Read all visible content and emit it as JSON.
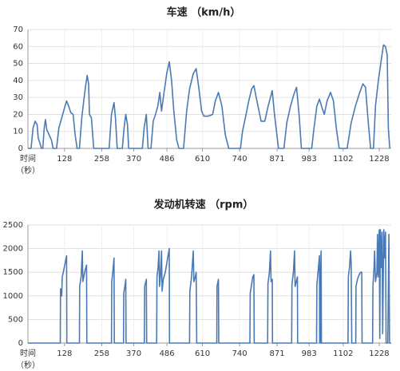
{
  "chart_data": [
    {
      "type": "line",
      "title": "车速 （km/h）",
      "x_label": [
        "时间",
        "（秒）"
      ],
      "x": [
        0,
        11,
        18,
        25,
        32,
        36,
        44,
        47,
        52,
        57,
        61,
        66,
        74,
        82,
        88,
        100,
        108,
        118,
        128,
        135,
        142,
        150,
        158,
        165,
        172,
        180,
        188,
        195,
        201,
        207,
        212,
        215,
        222,
        230,
        284,
        292,
        301,
        306,
        312,
        330,
        336,
        342,
        348,
        352,
        400,
        406,
        414,
        420,
        430,
        438,
        446,
        454,
        461,
        467,
        475,
        485,
        494,
        502,
        510,
        520,
        528,
        544,
        555,
        565,
        578,
        588,
        598,
        607,
        615,
        630,
        646,
        655,
        666,
        678,
        690,
        702,
        743,
        750,
        760,
        772,
        782,
        790,
        798,
        815,
        828,
        840,
        854,
        862,
        876,
        895,
        905,
        918,
        930,
        939,
        948,
        956,
        992,
        1000,
        1010,
        1019,
        1028,
        1036,
        1046,
        1058,
        1068,
        1078,
        1088,
        1116,
        1130,
        1145,
        1160,
        1171,
        1180,
        1190,
        1198,
        1208,
        1215,
        1225,
        1235,
        1243,
        1250,
        1256,
        1260,
        1265
      ],
      "series": [
        {
          "color": "#4a7ab5",
          "values": [
            0,
            0,
            12,
            16,
            14,
            6,
            2,
            0,
            0,
            12,
            17,
            11,
            8,
            5,
            0,
            0,
            12,
            18,
            24,
            28,
            25,
            21,
            20,
            8,
            0,
            0,
            18,
            28,
            36,
            43,
            38,
            20,
            18,
            0,
            0,
            20,
            27,
            18,
            0,
            0,
            12,
            20,
            14,
            0,
            0,
            12,
            20,
            0,
            0,
            16,
            20,
            25,
            33,
            22,
            32,
            44,
            51,
            40,
            22,
            5,
            0,
            0,
            22,
            35,
            44,
            47,
            35,
            22,
            19,
            19,
            20,
            28,
            33,
            25,
            8,
            0,
            0,
            10,
            18,
            28,
            35,
            37,
            30,
            16,
            16,
            25,
            34,
            20,
            0,
            0,
            15,
            25,
            32,
            36,
            20,
            0,
            0,
            12,
            25,
            29,
            24,
            20,
            28,
            33,
            28,
            12,
            0,
            0,
            15,
            25,
            33,
            38,
            36,
            15,
            0,
            0,
            25,
            40,
            52,
            61,
            60,
            55,
            12,
            0
          ]
        }
      ],
      "xlim": [
        0,
        1270
      ],
      "xticks": [
        128,
        258,
        370,
        486,
        610,
        740,
        871,
        983,
        1102,
        1228
      ],
      "ylim": [
        0,
        70
      ],
      "yticks": [
        0,
        10,
        20,
        30,
        40,
        50,
        60,
        70
      ],
      "grid": true
    },
    {
      "type": "line",
      "title": "发动机转速 （rpm）",
      "x_label": [
        "时间",
        "（秒）"
      ],
      "x": [
        0,
        113,
        114,
        118,
        120,
        127,
        135,
        136,
        180,
        181,
        186,
        190,
        192,
        195,
        200,
        205,
        206,
        292,
        293,
        298,
        301,
        302,
        334,
        335,
        340,
        342,
        343,
        407,
        408,
        412,
        414,
        415,
        450,
        451,
        455,
        458,
        460,
        463,
        467,
        469,
        473,
        480,
        487,
        494,
        495,
        565,
        566,
        572,
        578,
        580,
        585,
        588,
        590,
        660,
        661,
        666,
        667,
        776,
        777,
        782,
        786,
        790,
        791,
        838,
        839,
        844,
        848,
        850,
        854,
        855,
        922,
        923,
        928,
        932,
        934,
        938,
        942,
        943,
        1009,
        1010,
        1015,
        1019,
        1020,
        1022,
        1023,
        1025,
        1026,
        1119,
        1120,
        1124,
        1128,
        1130,
        1132,
        1146,
        1147,
        1152,
        1158,
        1163,
        1167,
        1168,
        1205,
        1206,
        1210,
        1212,
        1215,
        1220,
        1222,
        1224,
        1228,
        1230,
        1232,
        1234,
        1238,
        1240,
        1244,
        1246,
        1250,
        1252,
        1258,
        1262,
        1264,
        1270
      ],
      "series": [
        {
          "color": "#4a7ab5",
          "values": [
            0,
            0,
            1150,
            1000,
            1400,
            1600,
            1850,
            0,
            0,
            1200,
            1400,
            1950,
            1300,
            1400,
            1550,
            1650,
            0,
            0,
            1300,
            1600,
            1800,
            0,
            0,
            1050,
            1250,
            1350,
            0,
            0,
            1200,
            1300,
            1350,
            0,
            0,
            1400,
            1600,
            1950,
            1200,
            1400,
            1950,
            1100,
            1350,
            1500,
            1750,
            2000,
            0,
            0,
            1100,
            1400,
            1950,
            1300,
            1400,
            1500,
            0,
            0,
            1200,
            1350,
            0,
            0,
            1050,
            1250,
            1400,
            1450,
            0,
            0,
            1250,
            1500,
            1950,
            1300,
            1350,
            0,
            0,
            1250,
            1500,
            1950,
            1200,
            1300,
            1400,
            0,
            0,
            1250,
            1550,
            1850,
            0,
            0,
            1400,
            1950,
            0,
            0,
            1400,
            1600,
            1950,
            1700,
            0,
            0,
            1200,
            1350,
            1450,
            1500,
            1500,
            0,
            0,
            1200,
            1600,
            1950,
            1300,
            1500,
            2300,
            1400,
            2400,
            100,
            2400,
            1600,
            2350,
            200,
            2400,
            1800,
            2350,
            0,
            0,
            2300,
            0,
            0
          ]
        }
      ],
      "xlim": [
        0,
        1270
      ],
      "xticks": [
        128,
        258,
        370,
        486,
        610,
        740,
        871,
        983,
        1102,
        1228
      ],
      "ylim": [
        0,
        2500
      ],
      "yticks": [
        0,
        500,
        1000,
        1500,
        2000,
        2500
      ],
      "grid": true
    }
  ]
}
